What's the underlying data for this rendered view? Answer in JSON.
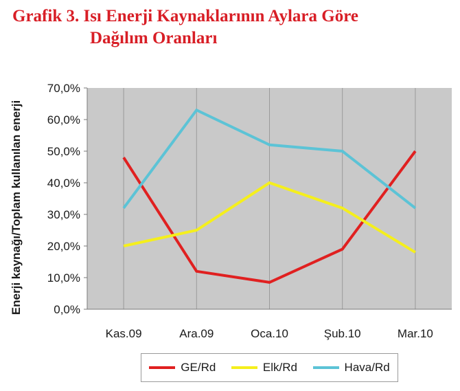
{
  "title": {
    "line1": "Grafik 3. Isı Enerji Kaynaklarının Aylara Göre",
    "line2": "Dağılım Oranları"
  },
  "chart_data": {
    "type": "line",
    "ylabel": "Enerji kaynağı/Toplam kullanılan enerji",
    "xlabel": "",
    "categories": [
      "Kas.09",
      "Ara.09",
      "Oca.10",
      "Şub.10",
      "Mar.10"
    ],
    "yticks": [
      "0,0%",
      "10,0%",
      "20,0%",
      "30,0%",
      "40,0%",
      "50,0%",
      "60,0%",
      "70,0%"
    ],
    "ylim": [
      0,
      70
    ],
    "grid": "vertical",
    "legend": "bottom",
    "series": [
      {
        "name": "GE/Rd",
        "color": "#e02020",
        "values": [
          48,
          12,
          8.5,
          19,
          50
        ]
      },
      {
        "name": "Elk/Rd",
        "color": "#f5ef1c",
        "values": [
          20,
          25,
          40,
          32,
          18
        ]
      },
      {
        "name": "Hava/Rd",
        "color": "#5cc3d6",
        "values": [
          32,
          63,
          52,
          50,
          32
        ]
      }
    ]
  }
}
